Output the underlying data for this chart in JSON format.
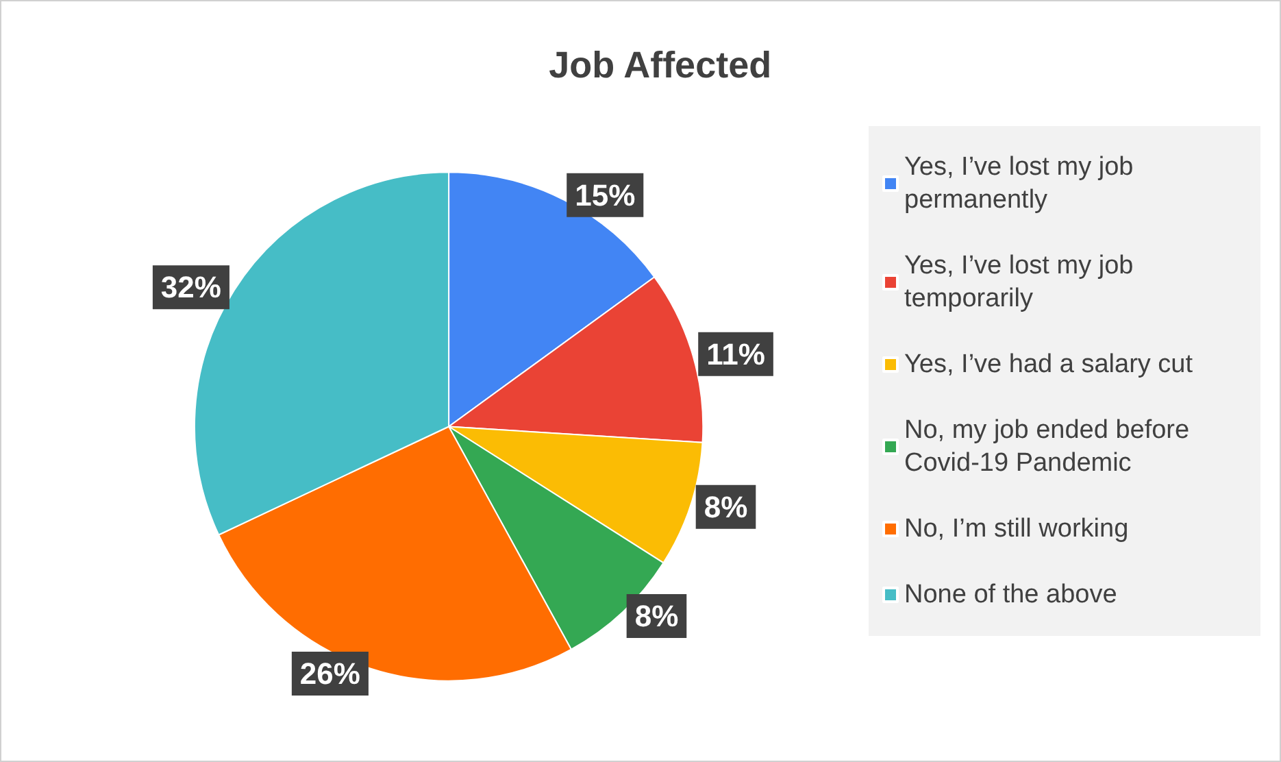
{
  "chart_data": {
    "type": "pie",
    "title": "Job Affected",
    "categories": [
      "Yes, I’ve lost my job permanently",
      "Yes, I’ve lost my job temporarily",
      "Yes, I’ve had a salary cut",
      "No, my job ended before Covid-19 Pandemic",
      "No, I’m still working",
      "None of the above"
    ],
    "values": [
      15,
      11,
      8,
      8,
      26,
      32
    ],
    "colors": [
      "#4285f4",
      "#ea4335",
      "#fbbc04",
      "#34a853",
      "#ff6d01",
      "#46bdc6"
    ],
    "value_labels": [
      "15%",
      "11%",
      "8%",
      "8%",
      "26%",
      "32%"
    ],
    "legend": "right"
  }
}
